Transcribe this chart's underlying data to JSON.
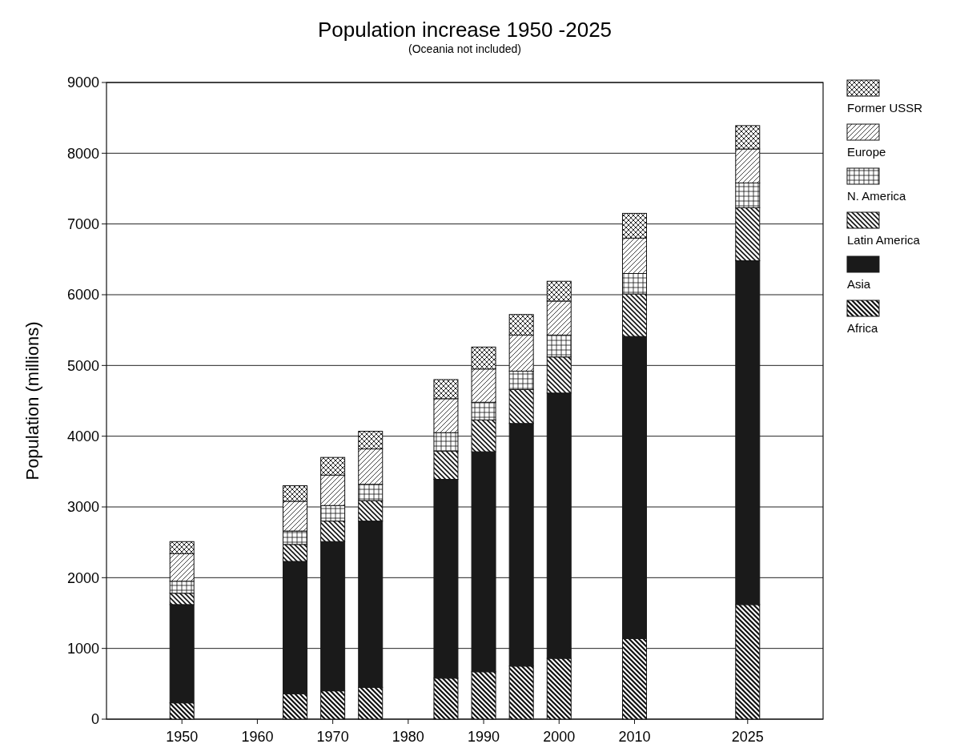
{
  "chart_data": {
    "type": "bar",
    "stacked": true,
    "title": "Population increase 1950 -2025",
    "subtitle": "(Oceania not included)",
    "ylabel": "Population (millions)",
    "x": [
      1950,
      1965,
      1970,
      1975,
      1985,
      1990,
      1995,
      2000,
      2010,
      2025
    ],
    "xlim": [
      1940,
      2035
    ],
    "xticks": [
      1950,
      1960,
      1970,
      1980,
      1990,
      2000,
      2010,
      2025
    ],
    "ylim": [
      0,
      9000
    ],
    "yticks": [
      0,
      1000,
      2000,
      3000,
      4000,
      5000,
      6000,
      7000,
      8000,
      9000
    ],
    "grid": "y",
    "legend": "right",
    "series": [
      {
        "name": "Africa",
        "color": "#111111",
        "values": [
          230,
          360,
          400,
          450,
          580,
          670,
          750,
          860,
          1140,
          1620
        ]
      },
      {
        "name": "Asia",
        "color": "#1a1a1a",
        "values": [
          1390,
          1870,
          2110,
          2350,
          2810,
          3110,
          3430,
          3750,
          4270,
          4860
        ]
      },
      {
        "name": "Latin America",
        "color": "#111111",
        "values": [
          160,
          240,
          290,
          290,
          400,
          450,
          480,
          510,
          600,
          750
        ]
      },
      {
        "name": "N. America",
        "color": "#111111",
        "values": [
          170,
          190,
          220,
          230,
          260,
          250,
          260,
          310,
          290,
          350
        ]
      },
      {
        "name": "Europe",
        "color": "#111111",
        "values": [
          390,
          420,
          430,
          500,
          480,
          470,
          510,
          480,
          500,
          480
        ]
      },
      {
        "name": "Former USSR",
        "color": "#111111",
        "values": [
          170,
          220,
          250,
          250,
          270,
          310,
          290,
          280,
          350,
          330
        ]
      }
    ]
  }
}
